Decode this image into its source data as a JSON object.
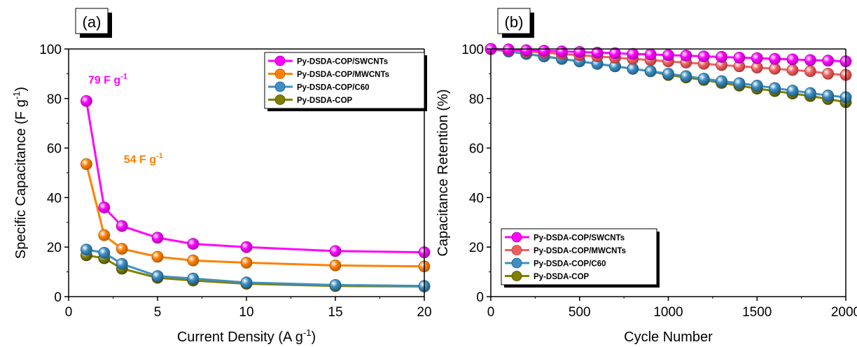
{
  "chart_data": [
    {
      "type": "line",
      "panel_label": "(a)",
      "xlabel": "Current Density (A g",
      "xlabel_sup": "-1",
      "xlabel_tail": ")",
      "ylabel": "Specific Capacitance (F g",
      "ylabel_sup": "-1",
      "ylabel_tail": ")",
      "xlim": [
        0,
        20
      ],
      "ylim": [
        0,
        100
      ],
      "xticks": [
        0,
        5,
        10,
        15,
        20
      ],
      "yticks": [
        0,
        20,
        40,
        60,
        80,
        100
      ],
      "legend_position": "top-right",
      "grid": false,
      "x": [
        1,
        2,
        3,
        5,
        7,
        10,
        15,
        20
      ],
      "series": [
        {
          "name": "Py-DSDA-COP/SWCNTs",
          "color": "#ff00ff",
          "edge": "#b000b0",
          "values": [
            79,
            36,
            28.5,
            23.8,
            21.3,
            20,
            18.4,
            17.9
          ]
        },
        {
          "name": "Py-DSDA-COP/MWCNTs",
          "color": "#ff8000",
          "edge": "#b85a00",
          "values": [
            53.5,
            24.8,
            19.3,
            16.1,
            14.6,
            13.7,
            12.6,
            12.2
          ]
        },
        {
          "name": "Py-DSDA-COP/C60",
          "color": "#3d8fc4",
          "edge": "#1f5d86",
          "values": [
            19,
            17.7,
            13.2,
            8.3,
            7.3,
            5.7,
            4.7,
            4.3
          ]
        },
        {
          "name": "Py-DSDA-COP",
          "color": "#808000",
          "edge": "#4d4d00",
          "values": [
            16.7,
            15.5,
            11.3,
            7.6,
            6.5,
            5.2,
            4.3,
            4.1
          ]
        }
      ],
      "annotations": [
        {
          "text": "79 F g",
          "sup": "-1",
          "color": "#ff00ff",
          "at": [
            1.1,
            86
          ]
        },
        {
          "text": "54 F g",
          "sup": "-1",
          "color": "#ff8000",
          "at": [
            3.1,
            54
          ]
        }
      ]
    },
    {
      "type": "line",
      "panel_label": "(b)",
      "xlabel": "Cycle Number",
      "ylabel": "Capacitance Retention (%)",
      "xlim": [
        0,
        2000
      ],
      "ylim": [
        0,
        100
      ],
      "xticks": [
        0,
        500,
        1000,
        1500,
        2000
      ],
      "yticks": [
        0,
        20,
        40,
        60,
        80,
        100
      ],
      "legend_position": "bottom-left",
      "grid": false,
      "x": [
        0,
        100,
        200,
        300,
        400,
        500,
        600,
        700,
        800,
        900,
        1000,
        1100,
        1200,
        1300,
        1400,
        1500,
        1600,
        1700,
        1800,
        1900,
        2000
      ],
      "series": [
        {
          "name": "Py-DSDA-COP/SWCNTs",
          "color": "#ff00ff",
          "edge": "#b000b0",
          "values": [
            100,
            99.8,
            99.5,
            99.3,
            99,
            98.8,
            98.5,
            98.3,
            98,
            97.8,
            97.5,
            97.3,
            97,
            96.8,
            96.5,
            96.3,
            96,
            95.8,
            95.5,
            95.3,
            95
          ]
        },
        {
          "name": "Py-DSDA-COP/MWCNTs",
          "color": "#f06060",
          "edge": "#b03a3a",
          "values": [
            100,
            99.5,
            99,
            98.5,
            98,
            97.5,
            97,
            96.5,
            96,
            95.5,
            95,
            94.5,
            94,
            93.5,
            93,
            92.5,
            92,
            91.5,
            91,
            90,
            89.5
          ]
        },
        {
          "name": "Py-DSDA-COP/C60",
          "color": "#3d8fc4",
          "edge": "#1f5d86",
          "values": [
            100,
            99,
            98,
            97,
            96,
            95,
            94,
            93,
            92,
            91,
            90,
            89,
            88,
            87,
            86.2,
            85.2,
            84.2,
            83.2,
            82.2,
            81.2,
            80.5
          ]
        },
        {
          "name": "Py-DSDA-COP",
          "color": "#808000",
          "edge": "#4d4d00",
          "values": [
            100,
            99,
            98,
            97,
            96,
            95,
            94,
            93,
            92,
            91,
            89.5,
            88.5,
            87.5,
            86.3,
            85.2,
            84,
            83,
            82,
            81,
            79.8,
            78.5
          ]
        }
      ],
      "annotations": []
    }
  ]
}
